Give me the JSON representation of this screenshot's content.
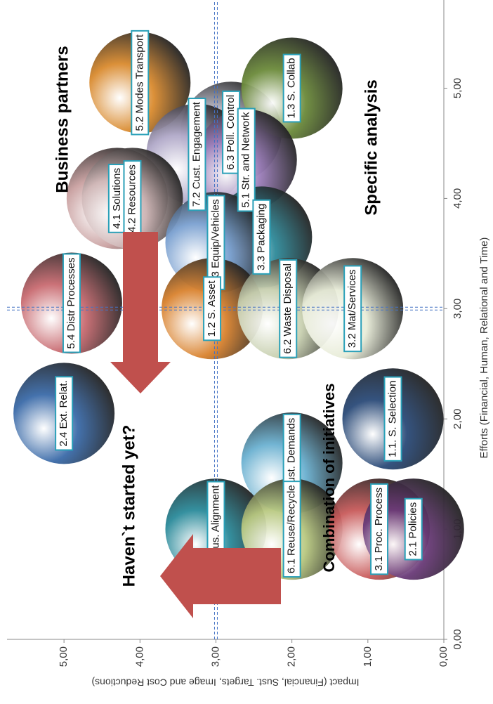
{
  "chart_data": {
    "type": "bubble",
    "x_label": "Efforts (Financial, Human, Relational and Time)",
    "y_label": "Impact (Financial, Sust. Targets, Image and Cost Reductions)",
    "xlim": [
      0,
      5.8
    ],
    "ylim": [
      0,
      5.75
    ],
    "xticks": [
      {
        "value": 0,
        "label": "0,00"
      },
      {
        "value": 1,
        "label": "1,00"
      },
      {
        "value": 2,
        "label": "2,00"
      },
      {
        "value": 3,
        "label": "3,00"
      },
      {
        "value": 4,
        "label": "4,00"
      },
      {
        "value": 5,
        "label": "5,00"
      }
    ],
    "yticks": [
      {
        "value": 0,
        "label": "0,00"
      },
      {
        "value": 1,
        "label": "1,00"
      },
      {
        "value": 2,
        "label": "2,00"
      },
      {
        "value": 3,
        "label": "3,00"
      },
      {
        "value": 4,
        "label": "4,00"
      },
      {
        "value": 5,
        "label": "5,00"
      }
    ],
    "reference_lines": {
      "x": 3,
      "y": 3
    },
    "annotations": [
      "Business partners",
      "Specific analysis",
      "Haven`t started yet?",
      "Combination of initiatives"
    ],
    "points": [
      {
        "label": "6.3 Poll. Control",
        "x": 4.6,
        "y": 2.8,
        "color": "#c8c8d8"
      },
      {
        "label": "5.2 Modes Transport",
        "x": 5.05,
        "y": 4.0,
        "color": "#d98a2e"
      },
      {
        "label": "1.3 S. Collab",
        "x": 5.0,
        "y": 2.0,
        "color": "#6b8a3a"
      },
      {
        "label": "7.2 Cust. Engagement",
        "x": 4.4,
        "y": 3.25,
        "color": "#b0a8c8"
      },
      {
        "label": "5.1 Str. and Network",
        "x": 4.35,
        "y": 2.6,
        "color": "#9a7cb8"
      },
      {
        "label": "4.1 Solutions",
        "x": 4.0,
        "y": 4.3,
        "color": "#c9a0a0"
      },
      {
        "label": "4.2 Resources",
        "x": 4.0,
        "y": 4.1,
        "color": "#d0b8b8"
      },
      {
        "label": "3.3 Packaging",
        "x": 3.65,
        "y": 2.4,
        "color": "#2e8a9a"
      },
      {
        "label": "5.3 Equip/Vehicles",
        "x": 3.6,
        "y": 3.0,
        "color": "#7aa0d0"
      },
      {
        "label": "5.4 Distr Processes",
        "x": 3.05,
        "y": 4.9,
        "color": "#c86a70"
      },
      {
        "label": "1.2 S. Asset",
        "x": 3.0,
        "y": 3.05,
        "color": "#d9822e"
      },
      {
        "label": "6.2 Waste Disposal",
        "x": 3.0,
        "y": 2.05,
        "color": "#c8d0b0"
      },
      {
        "label": "3.2 Mat/Services",
        "x": 3.0,
        "y": 1.2,
        "color": "#e8ecd8"
      },
      {
        "label": "2.4 Ext. Relat.",
        "x": 2.05,
        "y": 5.0,
        "color": "#3a6aa8"
      },
      {
        "label": "1.1. S. Selection",
        "x": 2.0,
        "y": 0.67,
        "color": "#2a4a78"
      },
      {
        "label": "7.1 Cust. Demands",
        "x": 1.6,
        "y": 2.0,
        "color": "#6ab0d0"
      },
      {
        "label": "2.2 Bus. Alignment",
        "x": 1.0,
        "y": 3.0,
        "color": "#2a8a9a"
      },
      {
        "label": "6.1 Reuse/Recycle",
        "x": 1.0,
        "y": 2.0,
        "color": "#b8c880"
      },
      {
        "label": "3.1 Proc. Process",
        "x": 1.0,
        "y": 0.85,
        "color": "#c85a5a"
      },
      {
        "label": "2.1 Policies",
        "x": 1.0,
        "y": 0.4,
        "color": "#6a3a78"
      }
    ]
  }
}
